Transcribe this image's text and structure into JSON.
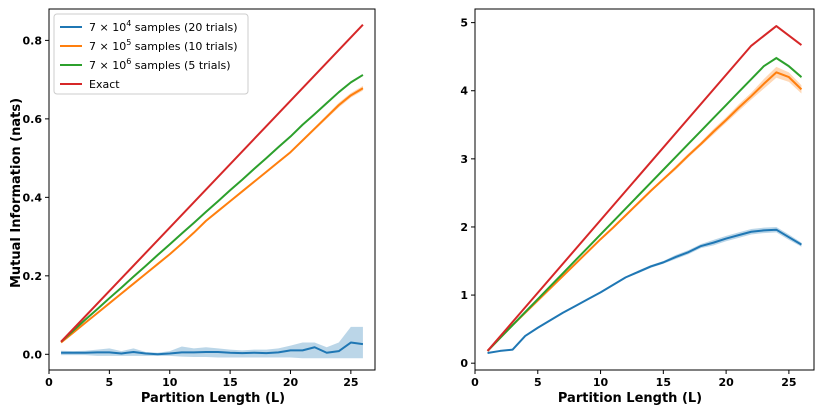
{
  "chart_data": [
    {
      "type": "line",
      "title": "",
      "xlabel": "Partition Length (L)",
      "ylabel": "Mutual Information (nats)",
      "xlim": [
        0,
        27
      ],
      "ylim": [
        -0.04,
        0.88
      ],
      "xticks": [
        0,
        5,
        10,
        15,
        20,
        25
      ],
      "yticks": [
        0.0,
        0.2,
        0.4,
        0.6,
        0.8
      ],
      "ytick_labels": [
        "0.0",
        "0.2",
        "0.4",
        "0.6",
        "0.8"
      ],
      "legend_position": "top-left",
      "series": [
        {
          "name": "7×10⁴ samples (20 trials)",
          "legend_base": "7 × 10",
          "legend_exp": "4",
          "legend_tail": " samples (20 trials)",
          "color": "#1f77b4",
          "x": [
            1,
            2,
            3,
            4,
            5,
            6,
            7,
            8,
            9,
            10,
            11,
            12,
            13,
            14,
            15,
            16,
            17,
            18,
            19,
            20,
            21,
            22,
            23,
            24,
            25,
            26
          ],
          "values": [
            0.004,
            0.004,
            0.004,
            0.005,
            0.005,
            0.002,
            0.006,
            0.002,
            0.0,
            0.002,
            0.005,
            0.005,
            0.006,
            0.006,
            0.004,
            0.003,
            0.004,
            0.003,
            0.005,
            0.01,
            0.01,
            0.018,
            0.004,
            0.008,
            0.03,
            0.026
          ],
          "band_low": [
            -0.002,
            -0.002,
            -0.002,
            -0.004,
            -0.004,
            -0.004,
            -0.004,
            -0.004,
            -0.004,
            -0.004,
            -0.006,
            -0.007,
            -0.007,
            -0.008,
            -0.008,
            -0.008,
            -0.008,
            -0.008,
            -0.008,
            -0.008,
            -0.01,
            -0.01,
            -0.01,
            -0.01,
            -0.01,
            -0.01
          ],
          "band_high": [
            0.009,
            0.008,
            0.009,
            0.012,
            0.015,
            0.008,
            0.015,
            0.006,
            0.004,
            0.008,
            0.02,
            0.015,
            0.018,
            0.015,
            0.012,
            0.01,
            0.012,
            0.012,
            0.015,
            0.022,
            0.03,
            0.03,
            0.018,
            0.03,
            0.07,
            0.07
          ]
        },
        {
          "name": "7×10⁵ samples (10 trials)",
          "legend_base": "7 × 10",
          "legend_exp": "5",
          "legend_tail": " samples (10 trials)",
          "color": "#ff7f0e",
          "x": [
            1,
            2,
            3,
            4,
            5,
            6,
            7,
            8,
            9,
            10,
            11,
            12,
            13,
            14,
            15,
            16,
            17,
            18,
            19,
            20,
            21,
            22,
            23,
            24,
            25,
            26
          ],
          "values": [
            0.03,
            0.055,
            0.08,
            0.105,
            0.13,
            0.155,
            0.18,
            0.205,
            0.23,
            0.255,
            0.282,
            0.31,
            0.34,
            0.365,
            0.39,
            0.415,
            0.44,
            0.465,
            0.49,
            0.515,
            0.545,
            0.575,
            0.605,
            0.635,
            0.66,
            0.678
          ],
          "band_low": [
            0.029,
            0.054,
            0.079,
            0.104,
            0.129,
            0.154,
            0.179,
            0.204,
            0.229,
            0.254,
            0.281,
            0.309,
            0.338,
            0.363,
            0.388,
            0.412,
            0.437,
            0.462,
            0.487,
            0.512,
            0.541,
            0.571,
            0.6,
            0.629,
            0.654,
            0.672
          ],
          "band_high": [
            0.031,
            0.056,
            0.081,
            0.106,
            0.131,
            0.156,
            0.181,
            0.206,
            0.231,
            0.256,
            0.283,
            0.311,
            0.342,
            0.367,
            0.392,
            0.418,
            0.443,
            0.468,
            0.493,
            0.518,
            0.549,
            0.579,
            0.61,
            0.641,
            0.666,
            0.684
          ]
        },
        {
          "name": "7×10⁶ samples (5 trials)",
          "legend_base": "7 × 10",
          "legend_exp": "6",
          "legend_tail": " samples (5 trials)",
          "color": "#2ca02c",
          "x": [
            1,
            2,
            3,
            4,
            5,
            6,
            7,
            8,
            9,
            10,
            11,
            12,
            13,
            14,
            15,
            16,
            17,
            18,
            19,
            20,
            21,
            22,
            23,
            24,
            25,
            26
          ],
          "values": [
            0.032,
            0.06,
            0.088,
            0.115,
            0.143,
            0.17,
            0.198,
            0.225,
            0.253,
            0.28,
            0.308,
            0.335,
            0.363,
            0.39,
            0.418,
            0.445,
            0.473,
            0.5,
            0.528,
            0.555,
            0.585,
            0.612,
            0.64,
            0.668,
            0.693,
            0.712
          ],
          "band_low": [
            0.032,
            0.06,
            0.088,
            0.115,
            0.143,
            0.17,
            0.198,
            0.225,
            0.253,
            0.28,
            0.308,
            0.335,
            0.363,
            0.39,
            0.418,
            0.445,
            0.473,
            0.5,
            0.528,
            0.555,
            0.584,
            0.611,
            0.639,
            0.667,
            0.692,
            0.71
          ],
          "band_high": [
            0.032,
            0.06,
            0.088,
            0.115,
            0.143,
            0.17,
            0.198,
            0.225,
            0.253,
            0.28,
            0.308,
            0.335,
            0.363,
            0.39,
            0.418,
            0.445,
            0.473,
            0.5,
            0.528,
            0.555,
            0.586,
            0.613,
            0.641,
            0.669,
            0.694,
            0.714
          ]
        },
        {
          "name": "Exact",
          "legend_base": "Exact",
          "legend_exp": "",
          "legend_tail": "",
          "color": "#d62728",
          "x": [
            1,
            26
          ],
          "values": [
            0.032,
            0.84
          ]
        }
      ]
    },
    {
      "type": "line",
      "title": "",
      "xlabel": "Partition Length (L)",
      "ylabel": "",
      "xlim": [
        0,
        27
      ],
      "ylim": [
        -0.1,
        5.2
      ],
      "xticks": [
        0,
        5,
        10,
        15,
        20,
        25
      ],
      "yticks": [
        0,
        1,
        2,
        3,
        4,
        5
      ],
      "ytick_labels": [
        "0",
        "1",
        "2",
        "3",
        "4",
        "5"
      ],
      "series": [
        {
          "name": "7×10⁴ samples (20 trials)",
          "color": "#1f77b4",
          "x": [
            1,
            2,
            3,
            4,
            5,
            6,
            7,
            8,
            9,
            10,
            11,
            12,
            13,
            14,
            15,
            16,
            17,
            18,
            19,
            20,
            21,
            22,
            23,
            24,
            25,
            26
          ],
          "values": [
            0.15,
            0.18,
            0.2,
            0.4,
            0.52,
            0.63,
            0.74,
            0.84,
            0.94,
            1.04,
            1.15,
            1.26,
            1.34,
            1.42,
            1.48,
            1.56,
            1.63,
            1.72,
            1.77,
            1.83,
            1.88,
            1.93,
            1.95,
            1.96,
            1.85,
            1.74
          ],
          "band_low": [
            0.14,
            0.17,
            0.19,
            0.39,
            0.51,
            0.62,
            0.73,
            0.83,
            0.93,
            1.03,
            1.14,
            1.25,
            1.32,
            1.4,
            1.46,
            1.53,
            1.6,
            1.69,
            1.73,
            1.79,
            1.84,
            1.89,
            1.91,
            1.92,
            1.81,
            1.71
          ],
          "band_high": [
            0.16,
            0.19,
            0.21,
            0.41,
            0.53,
            0.64,
            0.75,
            0.85,
            0.95,
            1.05,
            1.16,
            1.27,
            1.36,
            1.44,
            1.5,
            1.59,
            1.66,
            1.75,
            1.81,
            1.87,
            1.92,
            1.97,
            1.99,
            2.0,
            1.89,
            1.77
          ]
        },
        {
          "name": "7×10⁵ samples (10 trials)",
          "color": "#ff7f0e",
          "x": [
            1,
            2,
            3,
            4,
            5,
            6,
            7,
            8,
            9,
            10,
            11,
            12,
            13,
            14,
            15,
            16,
            17,
            18,
            19,
            20,
            21,
            22,
            23,
            24,
            25,
            26
          ],
          "values": [
            0.18,
            0.37,
            0.56,
            0.74,
            0.92,
            1.1,
            1.28,
            1.46,
            1.64,
            1.82,
            1.99,
            2.17,
            2.35,
            2.53,
            2.7,
            2.87,
            3.05,
            3.22,
            3.4,
            3.57,
            3.75,
            3.92,
            4.1,
            4.27,
            4.2,
            4.02
          ],
          "band_low": [
            0.18,
            0.37,
            0.56,
            0.74,
            0.92,
            1.1,
            1.28,
            1.46,
            1.63,
            1.81,
            1.98,
            2.15,
            2.33,
            2.51,
            2.68,
            2.84,
            3.02,
            3.19,
            3.36,
            3.53,
            3.7,
            3.87,
            4.03,
            4.19,
            4.13,
            3.96
          ],
          "band_high": [
            0.18,
            0.37,
            0.56,
            0.74,
            0.92,
            1.1,
            1.28,
            1.46,
            1.65,
            1.83,
            2.0,
            2.19,
            2.37,
            2.55,
            2.72,
            2.9,
            3.08,
            3.25,
            3.44,
            3.61,
            3.8,
            3.97,
            4.17,
            4.35,
            4.27,
            4.08
          ]
        },
        {
          "name": "7×10⁶ samples (5 trials)",
          "color": "#2ca02c",
          "x": [
            1,
            2,
            3,
            4,
            5,
            6,
            7,
            8,
            9,
            10,
            11,
            12,
            13,
            14,
            15,
            16,
            17,
            18,
            19,
            20,
            21,
            22,
            23,
            24,
            25,
            26
          ],
          "values": [
            0.18,
            0.37,
            0.56,
            0.75,
            0.94,
            1.13,
            1.32,
            1.51,
            1.7,
            1.89,
            2.08,
            2.27,
            2.46,
            2.65,
            2.84,
            3.03,
            3.22,
            3.41,
            3.6,
            3.79,
            3.98,
            4.17,
            4.36,
            4.48,
            4.36,
            4.2
          ],
          "band_low": [
            0.18,
            0.37,
            0.56,
            0.75,
            0.94,
            1.13,
            1.32,
            1.51,
            1.7,
            1.89,
            2.08,
            2.27,
            2.46,
            2.65,
            2.84,
            3.03,
            3.22,
            3.41,
            3.6,
            3.79,
            3.97,
            4.16,
            4.35,
            4.46,
            4.34,
            4.18
          ],
          "band_high": [
            0.18,
            0.37,
            0.56,
            0.75,
            0.94,
            1.13,
            1.32,
            1.51,
            1.7,
            1.89,
            2.08,
            2.27,
            2.46,
            2.65,
            2.84,
            3.03,
            3.22,
            3.41,
            3.6,
            3.79,
            3.99,
            4.18,
            4.37,
            4.5,
            4.38,
            4.22
          ]
        },
        {
          "name": "Exact",
          "color": "#d62728",
          "x": [
            1,
            22,
            24,
            26
          ],
          "values": [
            0.18,
            4.66,
            4.95,
            4.67
          ]
        }
      ]
    }
  ]
}
